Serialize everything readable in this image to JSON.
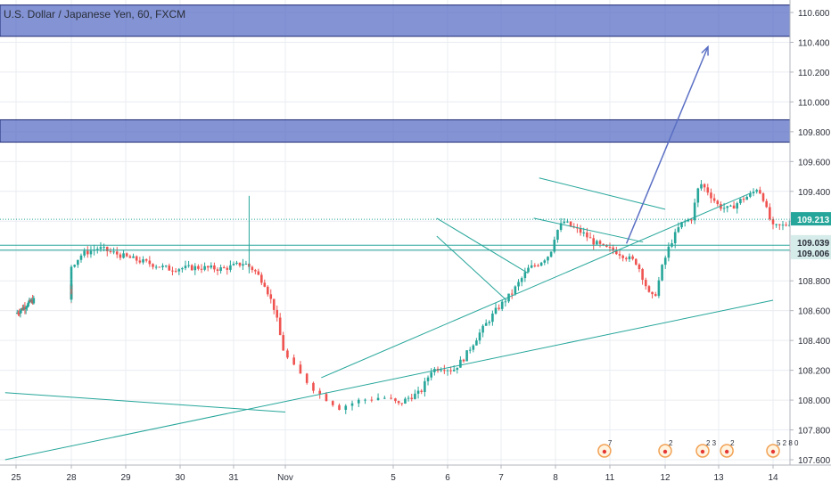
{
  "chart_data": {
    "type": "candlestick",
    "title": "U.S. Dollar / Japanese Yen, 60, FXCM",
    "colors": {
      "up": "#26a69a",
      "down": "#ef5350",
      "zone": "#5a6fc4",
      "line": "#26a69a",
      "arrow": "#5a6fc4",
      "current": "#26a69a",
      "axis_text": "#2a2e39",
      "grid": "#e9ecf1"
    },
    "xlim": [
      24.8,
      14.9
    ],
    "ylim": [
      107.57,
      110.69
    ],
    "x_ticks": [
      {
        "pos": 25,
        "label": "25"
      },
      {
        "pos": 28,
        "label": "28"
      },
      {
        "pos": 29,
        "label": "29"
      },
      {
        "pos": 30,
        "label": "30"
      },
      {
        "pos": 31,
        "label": "31"
      },
      {
        "pos": 32,
        "label": "Nov"
      },
      {
        "pos": 35,
        "label": "5"
      },
      {
        "pos": 36,
        "label": "6"
      },
      {
        "pos": 37,
        "label": "7"
      },
      {
        "pos": 38,
        "label": "8"
      },
      {
        "pos": 39,
        "label": "11"
      },
      {
        "pos": 40,
        "label": "12"
      },
      {
        "pos": 41,
        "label": "13"
      },
      {
        "pos": 42,
        "label": "14"
      }
    ],
    "y_ticks": [
      "110.600",
      "110.400",
      "110.200",
      "110.000",
      "109.800",
      "109.600",
      "109.400",
      "109.200",
      "109.000",
      "108.800",
      "108.600",
      "108.400",
      "108.200",
      "108.000",
      "107.800",
      "107.600"
    ],
    "price_path": [
      [
        0,
        108.58
      ],
      [
        0.8,
        108.66
      ],
      [
        1.5,
        108.7
      ],
      [
        2.0,
        108.74
      ],
      [
        2.7,
        108.78
      ],
      [
        3.0,
        108.9
      ],
      [
        3.2,
        108.98
      ],
      [
        3.5,
        109.02
      ],
      [
        4.0,
        108.96
      ],
      [
        4.4,
        108.92
      ],
      [
        4.8,
        108.88
      ],
      [
        5.3,
        108.89
      ],
      [
        5.8,
        108.88
      ],
      [
        6.2,
        108.92
      ],
      [
        6.4,
        108.87
      ],
      [
        6.6,
        108.78
      ],
      [
        6.8,
        108.6
      ],
      [
        6.95,
        108.35
      ],
      [
        7.1,
        108.2
      ],
      [
        7.3,
        108.05
      ],
      [
        7.5,
        107.95
      ],
      [
        7.7,
        108.0
      ],
      [
        7.9,
        108.02
      ],
      [
        8.1,
        107.97
      ],
      [
        8.3,
        108.02
      ],
      [
        8.5,
        108.05
      ],
      [
        8.7,
        108.2
      ],
      [
        8.9,
        108.22
      ],
      [
        9.1,
        108.2
      ],
      [
        9.3,
        108.28
      ],
      [
        9.6,
        108.45
      ],
      [
        9.9,
        108.6
      ],
      [
        10.2,
        108.72
      ],
      [
        10.5,
        108.88
      ],
      [
        10.7,
        108.92
      ],
      [
        10.9,
        108.98
      ],
      [
        11.0,
        109.12
      ],
      [
        11.15,
        109.2
      ],
      [
        11.3,
        109.16
      ],
      [
        11.5,
        109.12
      ],
      [
        11.7,
        109.06
      ],
      [
        11.9,
        109.02
      ],
      [
        12.1,
        109.0
      ],
      [
        12.3,
        108.96
      ],
      [
        12.5,
        108.92
      ],
      [
        12.65,
        108.78
      ],
      [
        12.75,
        108.68
      ],
      [
        12.85,
        108.72
      ],
      [
        12.95,
        108.88
      ],
      [
        13.1,
        109.04
      ],
      [
        13.3,
        109.18
      ],
      [
        13.5,
        109.22
      ],
      [
        13.65,
        109.46
      ],
      [
        13.8,
        109.4
      ],
      [
        14.0,
        109.3
      ],
      [
        14.2,
        109.28
      ],
      [
        14.4,
        109.34
      ],
      [
        14.6,
        109.38
      ],
      [
        14.7,
        109.42
      ],
      [
        14.8,
        109.38
      ],
      [
        14.9,
        109.25
      ],
      [
        15.0,
        109.16
      ],
      [
        15.2,
        109.17
      ],
      [
        15.4,
        109.21
      ]
    ],
    "special_wicks": [
      {
        "x": 6.3,
        "high": 109.37,
        "low": 108.85
      }
    ],
    "zones": [
      {
        "from": 110.44,
        "to": 110.65
      },
      {
        "from": 109.73,
        "to": 109.88
      }
    ],
    "hlines": [
      109.039,
      109.006
    ],
    "lines": [
      {
        "x1": 24.8,
        "y1": 108.05,
        "x2": 32.0,
        "y2": 107.92
      },
      {
        "x1": 24.8,
        "y1": 107.6,
        "x2": 42.0,
        "y2": 108.67
      },
      {
        "x1": 33.0,
        "y1": 108.15,
        "x2": 41.6,
        "y2": 109.39
      },
      {
        "x1": 35.8,
        "y1": 109.22,
        "x2": 37.5,
        "y2": 108.85
      },
      {
        "x1": 35.8,
        "y1": 109.1,
        "x2": 37.1,
        "y2": 108.67
      },
      {
        "x1": 37.7,
        "y1": 109.49,
        "x2": 40.0,
        "y2": 109.28
      },
      {
        "x1": 37.6,
        "y1": 109.22,
        "x2": 39.6,
        "y2": 109.06
      }
    ],
    "arrow": {
      "from": [
        39.3,
        109.05
      ],
      "to": [
        40.8,
        110.37
      ]
    },
    "current_price": {
      "value": 109.213,
      "label": "109.213"
    },
    "price_labels": [
      {
        "value": 109.039,
        "label": "109.039"
      },
      {
        "value": 109.006,
        "label": "109.006"
      }
    ],
    "event_markers": [
      {
        "x": 38.9,
        "count": "7"
      },
      {
        "x": 40.0,
        "count": "2"
      },
      {
        "x": 40.7,
        "count": "2 3"
      },
      {
        "x": 41.15,
        "count": "2"
      },
      {
        "x": 42.0,
        "count": "5 2 8 0"
      }
    ]
  }
}
